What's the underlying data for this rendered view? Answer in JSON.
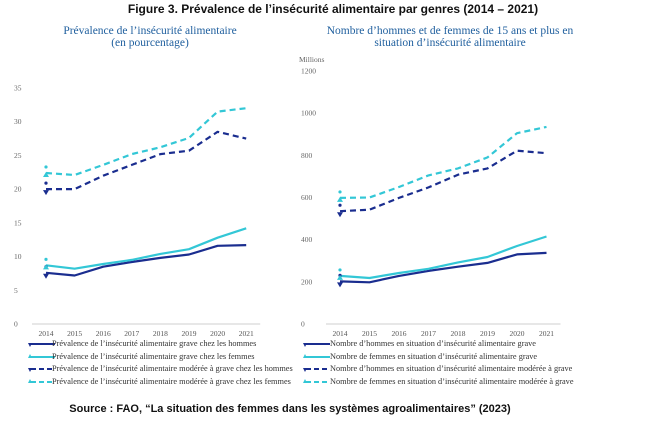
{
  "figure_title": "Figure 3. Prévalence de l’insécurité alimentaire par genres (2014 – 2021)",
  "source": "Source : FAO, “La situation des femmes dans les systèmes agroalimentaires” (2023)",
  "colors": {
    "dark": "#1a2d8f",
    "light": "#33c7d6",
    "title": "#1f5f9e"
  },
  "chart_data": [
    {
      "type": "line",
      "title": "Prévalence de l’insécurité alimentaire (en pourcentage)",
      "title_lines": [
        "Prévalence de l’insécurité alimentaire",
        "(en pourcentage)"
      ],
      "x": [
        "2014",
        "2015",
        "2016",
        "2017",
        "2018",
        "2019",
        "2020",
        "2021"
      ],
      "ylim": [
        0,
        35
      ],
      "yticks": [
        "0",
        "5",
        "10",
        "15",
        "20",
        "25",
        "30",
        "35"
      ],
      "grid": false,
      "legend_position": "bottom",
      "series": [
        {
          "name": "Prévalence de l’insécurité alimentaire grave chez les hommes",
          "values": [
            7.6,
            7.2,
            8.5,
            9.2,
            9.8,
            10.3,
            11.6,
            11.7
          ],
          "style": "solid",
          "color": "#1a2d8f"
        },
        {
          "name": "Prévalence de l’insécurité alimentaire grave chez les femmes",
          "values": [
            8.7,
            8.2,
            8.9,
            9.5,
            10.4,
            11.1,
            12.8,
            14.2
          ],
          "style": "solid",
          "color": "#33c7d6"
        },
        {
          "name": "Prévalence de l’insécurité alimentaire modérée à grave chez les hommes",
          "values": [
            20.0,
            20.0,
            22.0,
            23.6,
            25.2,
            25.7,
            28.5,
            27.5
          ],
          "style": "dashed",
          "color": "#1a2d8f"
        },
        {
          "name": "Prévalence de l’insécurité alimentaire modérée à grave chez les femmes",
          "values": [
            22.4,
            22.1,
            23.6,
            25.2,
            26.2,
            27.6,
            31.5,
            32.0
          ],
          "style": "dashed",
          "color": "#33c7d6"
        }
      ]
    },
    {
      "type": "line",
      "title": "Nombre d’hommes et de femmes de 15 ans et plus en situation d’insécurité alimentaire",
      "title_lines": [
        "Nombre d’hommes et de femmes de 15 ans et plus en",
        "situation d’insécurité alimentaire"
      ],
      "ylabel": "Millions",
      "x": [
        "2014",
        "2015",
        "2016",
        "2017",
        "2018",
        "2019",
        "2020",
        "2021"
      ],
      "ylim": [
        0,
        1200
      ],
      "yticks": [
        "0",
        "200",
        "400",
        "600",
        "800",
        "1000",
        "1200"
      ],
      "grid": false,
      "legend_position": "bottom",
      "series": [
        {
          "name": "Nombre d’hommes en situation d’insécurité alimentaire grave",
          "values": [
            202,
            198,
            228,
            252,
            272,
            290,
            330,
            337
          ],
          "style": "solid",
          "color": "#1a2d8f"
        },
        {
          "name": "Nombre de femmes en situation d’insécurité alimentaire grave",
          "values": [
            228,
            218,
            242,
            262,
            292,
            318,
            370,
            415
          ],
          "style": "solid",
          "color": "#33c7d6"
        },
        {
          "name": "Nombre d’hommes en situation d’insécurité alimentaire modérée à grave",
          "values": [
            535,
            542,
            598,
            648,
            708,
            738,
            822,
            810
          ],
          "style": "dashed",
          "color": "#1a2d8f"
        },
        {
          "name": "Nombre de femmes en situation d’insécurité alimentaire modérée à grave",
          "values": [
            598,
            600,
            650,
            705,
            738,
            790,
            905,
            935
          ],
          "style": "dashed",
          "color": "#33c7d6"
        }
      ]
    }
  ]
}
